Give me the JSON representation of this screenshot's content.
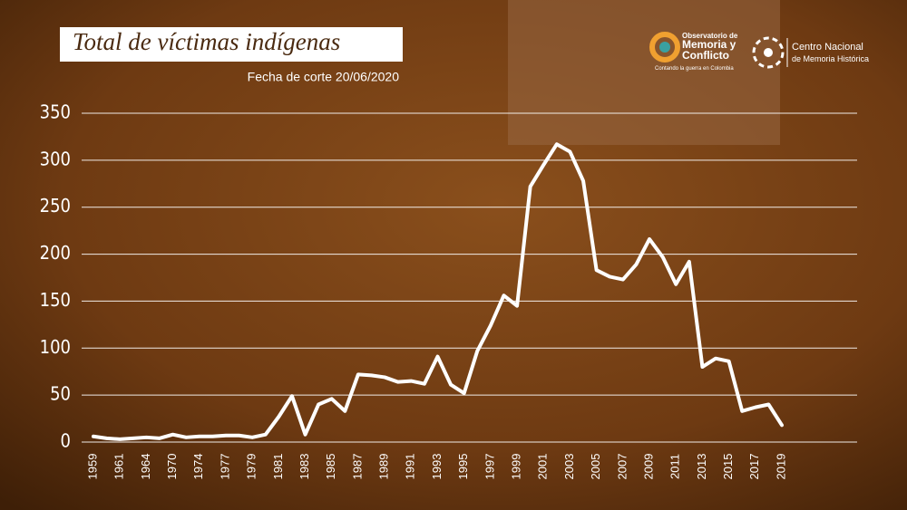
{
  "chart_data": {
    "type": "line",
    "title": "Total de víctimas indígenas",
    "subtitle": "Fecha de corte  20/06/2020",
    "categories": [
      "1959",
      null,
      "1961",
      null,
      "1964",
      null,
      "1970",
      null,
      "1974",
      null,
      "1977",
      null,
      "1979",
      null,
      "1981",
      null,
      "1983",
      null,
      "1985",
      null,
      "1987",
      null,
      "1989",
      null,
      "1991",
      null,
      "1993",
      null,
      "1995",
      null,
      "1997",
      null,
      "1999",
      null,
      "2001",
      null,
      "2003",
      null,
      "2005",
      null,
      "2007",
      null,
      "2009",
      null,
      "2011",
      null,
      "2013",
      null,
      "2015",
      null,
      "2017",
      null,
      "2019"
    ],
    "values": [
      6,
      4,
      3,
      4,
      5,
      4,
      8,
      5,
      6,
      6,
      7,
      7,
      5,
      8,
      27,
      49,
      8,
      40,
      46,
      33,
      72,
      71,
      69,
      64,
      65,
      62,
      91,
      61,
      52,
      97,
      124,
      156,
      145,
      272,
      295,
      317,
      309,
      278,
      183,
      176,
      173,
      189,
      216,
      197,
      168,
      192,
      80,
      89,
      86,
      33,
      37,
      40,
      18
    ],
    "color": "#ffffff",
    "ylim": [
      0,
      350
    ],
    "yticks": [
      0,
      50,
      100,
      150,
      200,
      250,
      300,
      350
    ],
    "grid": true
  },
  "logos": {
    "observatorio": [
      "Observatorio de",
      "Memoria y",
      "Conflicto",
      "Contando la guerra en Colombia"
    ],
    "centro": [
      "Centro Nacional",
      "de Memoria Histórica"
    ]
  }
}
